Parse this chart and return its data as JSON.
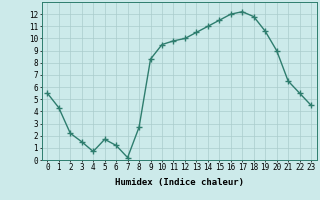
{
  "x": [
    0,
    1,
    2,
    3,
    4,
    5,
    6,
    7,
    8,
    9,
    10,
    11,
    12,
    13,
    14,
    15,
    16,
    17,
    18,
    19,
    20,
    21,
    22,
    23
  ],
  "y": [
    5.5,
    4.3,
    2.2,
    1.5,
    0.7,
    1.7,
    1.2,
    0.2,
    2.7,
    8.3,
    9.5,
    9.8,
    10.0,
    10.5,
    11.0,
    11.5,
    12.0,
    12.2,
    11.8,
    10.6,
    9.0,
    6.5,
    5.5,
    4.5
  ],
  "line_color": "#2e7d6e",
  "marker": "+",
  "markersize": 4,
  "linewidth": 1.0,
  "bg_color": "#cceaea",
  "grid_color": "#aacccc",
  "xlabel": "Humidex (Indice chaleur)",
  "xlim": [
    -0.5,
    23.5
  ],
  "ylim": [
    0,
    13
  ],
  "xticks": [
    0,
    1,
    2,
    3,
    4,
    5,
    6,
    7,
    8,
    9,
    10,
    11,
    12,
    13,
    14,
    15,
    16,
    17,
    18,
    19,
    20,
    21,
    22,
    23
  ],
  "yticks": [
    0,
    1,
    2,
    3,
    4,
    5,
    6,
    7,
    8,
    9,
    10,
    11,
    12
  ],
  "xlabel_fontsize": 6.5,
  "tick_fontsize": 5.5
}
